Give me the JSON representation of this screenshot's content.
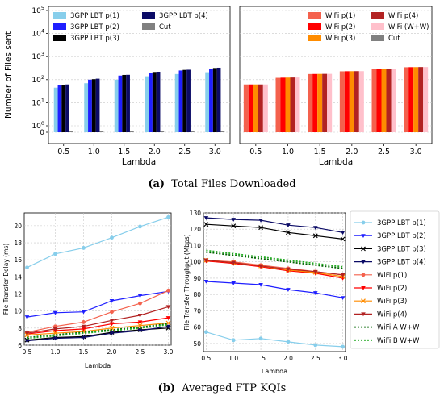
{
  "captions": {
    "a_label": "(a)",
    "a_text": "Total Files Downloaded",
    "b_label": "(b)",
    "b_text": "Averaged FTP KQIs"
  },
  "chart_data": [
    {
      "id": "files-3gpp",
      "type": "bar",
      "ylabel": "Number of Files sent",
      "xlabel": "Lambda",
      "yscale": "symlog",
      "ytick_labels": [
        "0",
        "10^0",
        "10^1",
        "10^2",
        "10^3",
        "10^4",
        "10^5"
      ],
      "ylim": [
        0,
        100000
      ],
      "categories": [
        "0.5",
        "1.0",
        "1.5",
        "2.0",
        "2.5",
        "3.0"
      ],
      "grid": true,
      "legend_position": "top",
      "series": [
        {
          "name": "3GPP LBT p(1)",
          "color": "#87ceeb",
          "values": [
            45,
            70,
            100,
            140,
            175,
            210
          ]
        },
        {
          "name": "3GPP LBT p(2)",
          "color": "#1f1fff",
          "values": [
            58,
            100,
            150,
            200,
            250,
            300
          ]
        },
        {
          "name": "3GPP LBT p(3)",
          "color": "#000000",
          "values": [
            60,
            105,
            160,
            215,
            265,
            320
          ]
        },
        {
          "name": "3GPP LBT p(4)",
          "color": "#0b0b66",
          "values": [
            62,
            110,
            162,
            220,
            270,
            330
          ]
        },
        {
          "name": "Cut",
          "color": "#808080",
          "values": [
            0.25,
            0.25,
            0.25,
            0.25,
            0.25,
            0.25
          ]
        }
      ]
    },
    {
      "id": "files-wifi",
      "type": "bar",
      "xlabel": "Lambda",
      "yscale": "symlog",
      "ylim": [
        0,
        100000
      ],
      "categories": [
        "0.5",
        "1.0",
        "1.5",
        "2.0",
        "2.5",
        "3.0"
      ],
      "grid": true,
      "legend_position": "top",
      "series": [
        {
          "name": "WiFi p(1)",
          "color": "#f4614d",
          "values": [
            62,
            120,
            175,
            230,
            290,
            345
          ]
        },
        {
          "name": "WiFi p(2)",
          "color": "#ff0000",
          "values": [
            62,
            122,
            176,
            232,
            292,
            348
          ]
        },
        {
          "name": "WiFi p(3)",
          "color": "#ff8c00",
          "values": [
            62,
            123,
            177,
            233,
            293,
            350
          ]
        },
        {
          "name": "WiFi p(4)",
          "color": "#b22222",
          "values": [
            62,
            124,
            178,
            234,
            294,
            352
          ]
        },
        {
          "name": "WiFi (W+W)",
          "color": "#ffc0cb",
          "values": [
            62,
            124,
            178,
            234,
            295,
            352
          ]
        },
        {
          "name": "Cut",
          "color": "#808080",
          "values": [
            0,
            0,
            0,
            0,
            0,
            0
          ]
        }
      ]
    },
    {
      "id": "delay",
      "type": "line",
      "ylabel": "File Transfer Delay (ms)",
      "xlabel": "Lambda",
      "x": [
        0.5,
        1.0,
        1.5,
        2.0,
        2.5,
        3.0
      ],
      "x_ticks": [
        "0.5",
        "1.0",
        "1.5",
        "2.0",
        "2.5",
        "3.0"
      ],
      "ylim": [
        6,
        21.5
      ],
      "y_ticks": [
        "6",
        "8",
        "10",
        "12",
        "14",
        "16",
        "18",
        "20"
      ],
      "grid": true,
      "series": [
        {
          "key": "lbt1",
          "values": [
            15.1,
            16.7,
            17.4,
            18.6,
            19.9,
            21.0
          ]
        },
        {
          "key": "lbt2",
          "values": [
            9.3,
            9.8,
            9.9,
            11.2,
            11.8,
            12.3
          ]
        },
        {
          "key": "lbt3",
          "values": [
            6.6,
            6.9,
            7.0,
            7.5,
            7.8,
            8.0
          ]
        },
        {
          "key": "lbt4",
          "values": [
            6.5,
            6.8,
            6.9,
            7.4,
            7.7,
            8.2
          ]
        },
        {
          "key": "wifi1",
          "values": [
            7.5,
            8.2,
            8.7,
            9.9,
            10.9,
            12.4
          ]
        },
        {
          "key": "wifi2",
          "values": [
            7.3,
            7.7,
            7.9,
            8.5,
            8.7,
            9.2
          ]
        },
        {
          "key": "wifi3",
          "values": [
            7.2,
            7.4,
            7.6,
            8.0,
            8.3,
            8.6
          ]
        },
        {
          "key": "wifi4",
          "values": [
            7.4,
            7.9,
            8.2,
            8.9,
            9.5,
            10.5
          ]
        },
        {
          "key": "wifiA",
          "values": [
            6.9,
            7.2,
            7.5,
            7.8,
            8.1,
            8.5
          ]
        },
        {
          "key": "wifiB",
          "values": [
            6.8,
            7.1,
            7.4,
            7.7,
            8.0,
            8.4
          ]
        }
      ]
    },
    {
      "id": "throughput",
      "type": "line",
      "ylabel": "File Transfer Throughput (Mbps)",
      "xlabel": "Lambda",
      "x": [
        0.5,
        1.0,
        1.5,
        2.0,
        2.5,
        3.0
      ],
      "x_ticks": [
        "0.5",
        "1.0",
        "1.5",
        "2.0",
        "2.5",
        "3.0"
      ],
      "ylim": [
        45,
        130
      ],
      "y_ticks": [
        "50",
        "60",
        "70",
        "80",
        "90",
        "100",
        "110",
        "120",
        "130"
      ],
      "grid": true,
      "legend_position": "right",
      "series": [
        {
          "key": "lbt1",
          "name": "3GPP LBT p(1)",
          "color": "#87ceeb",
          "marker": "circle",
          "dash": false,
          "values": [
            57,
            52,
            53,
            51,
            49,
            48
          ]
        },
        {
          "key": "lbt2",
          "name": "3GPP LBT p(2)",
          "color": "#1f1fff",
          "marker": "tri-down",
          "dash": false,
          "values": [
            88,
            87,
            86,
            83,
            81,
            78
          ]
        },
        {
          "key": "lbt3",
          "name": "3GPP LBT p(3)",
          "color": "#000000",
          "marker": "x",
          "dash": false,
          "values": [
            123,
            122,
            121,
            118,
            116,
            114
          ]
        },
        {
          "key": "lbt4",
          "name": "3GPP LBT p(4)",
          "color": "#0b0b66",
          "marker": "tri-down",
          "dash": false,
          "values": [
            127,
            126,
            125.5,
            122.5,
            121,
            118
          ]
        },
        {
          "key": "wifi1",
          "name": "WiFi p(1)",
          "color": "#f4614d",
          "marker": "circle",
          "dash": false,
          "values": [
            101,
            100,
            98,
            96,
            94,
            92
          ]
        },
        {
          "key": "wifi2",
          "name": "WiFi p(2)",
          "color": "#ff0000",
          "marker": "tri-down",
          "dash": false,
          "values": [
            100.5,
            99,
            97,
            94.5,
            93,
            90
          ]
        },
        {
          "key": "wifi3",
          "name": "WiFi p(3)",
          "color": "#ff8c00",
          "marker": "x",
          "dash": false,
          "values": [
            101,
            99.5,
            97.5,
            95,
            93.5,
            91
          ]
        },
        {
          "key": "wifi4",
          "name": "WiFi p(4)",
          "color": "#b22222",
          "marker": "tri-down",
          "dash": false,
          "values": [
            101,
            99.5,
            97.5,
            95.5,
            94,
            92
          ]
        },
        {
          "key": "wifiA",
          "name": "WiFi A W+W",
          "color": "#006400",
          "marker": "none",
          "dash": true,
          "values": [
            106,
            104,
            102,
            100,
            98,
            96
          ]
        },
        {
          "key": "wifiB",
          "name": "WiFi B W+W",
          "color": "#22aa22",
          "marker": "none",
          "dash": true,
          "values": [
            107,
            105,
            103,
            101,
            99,
            97
          ]
        }
      ]
    }
  ]
}
